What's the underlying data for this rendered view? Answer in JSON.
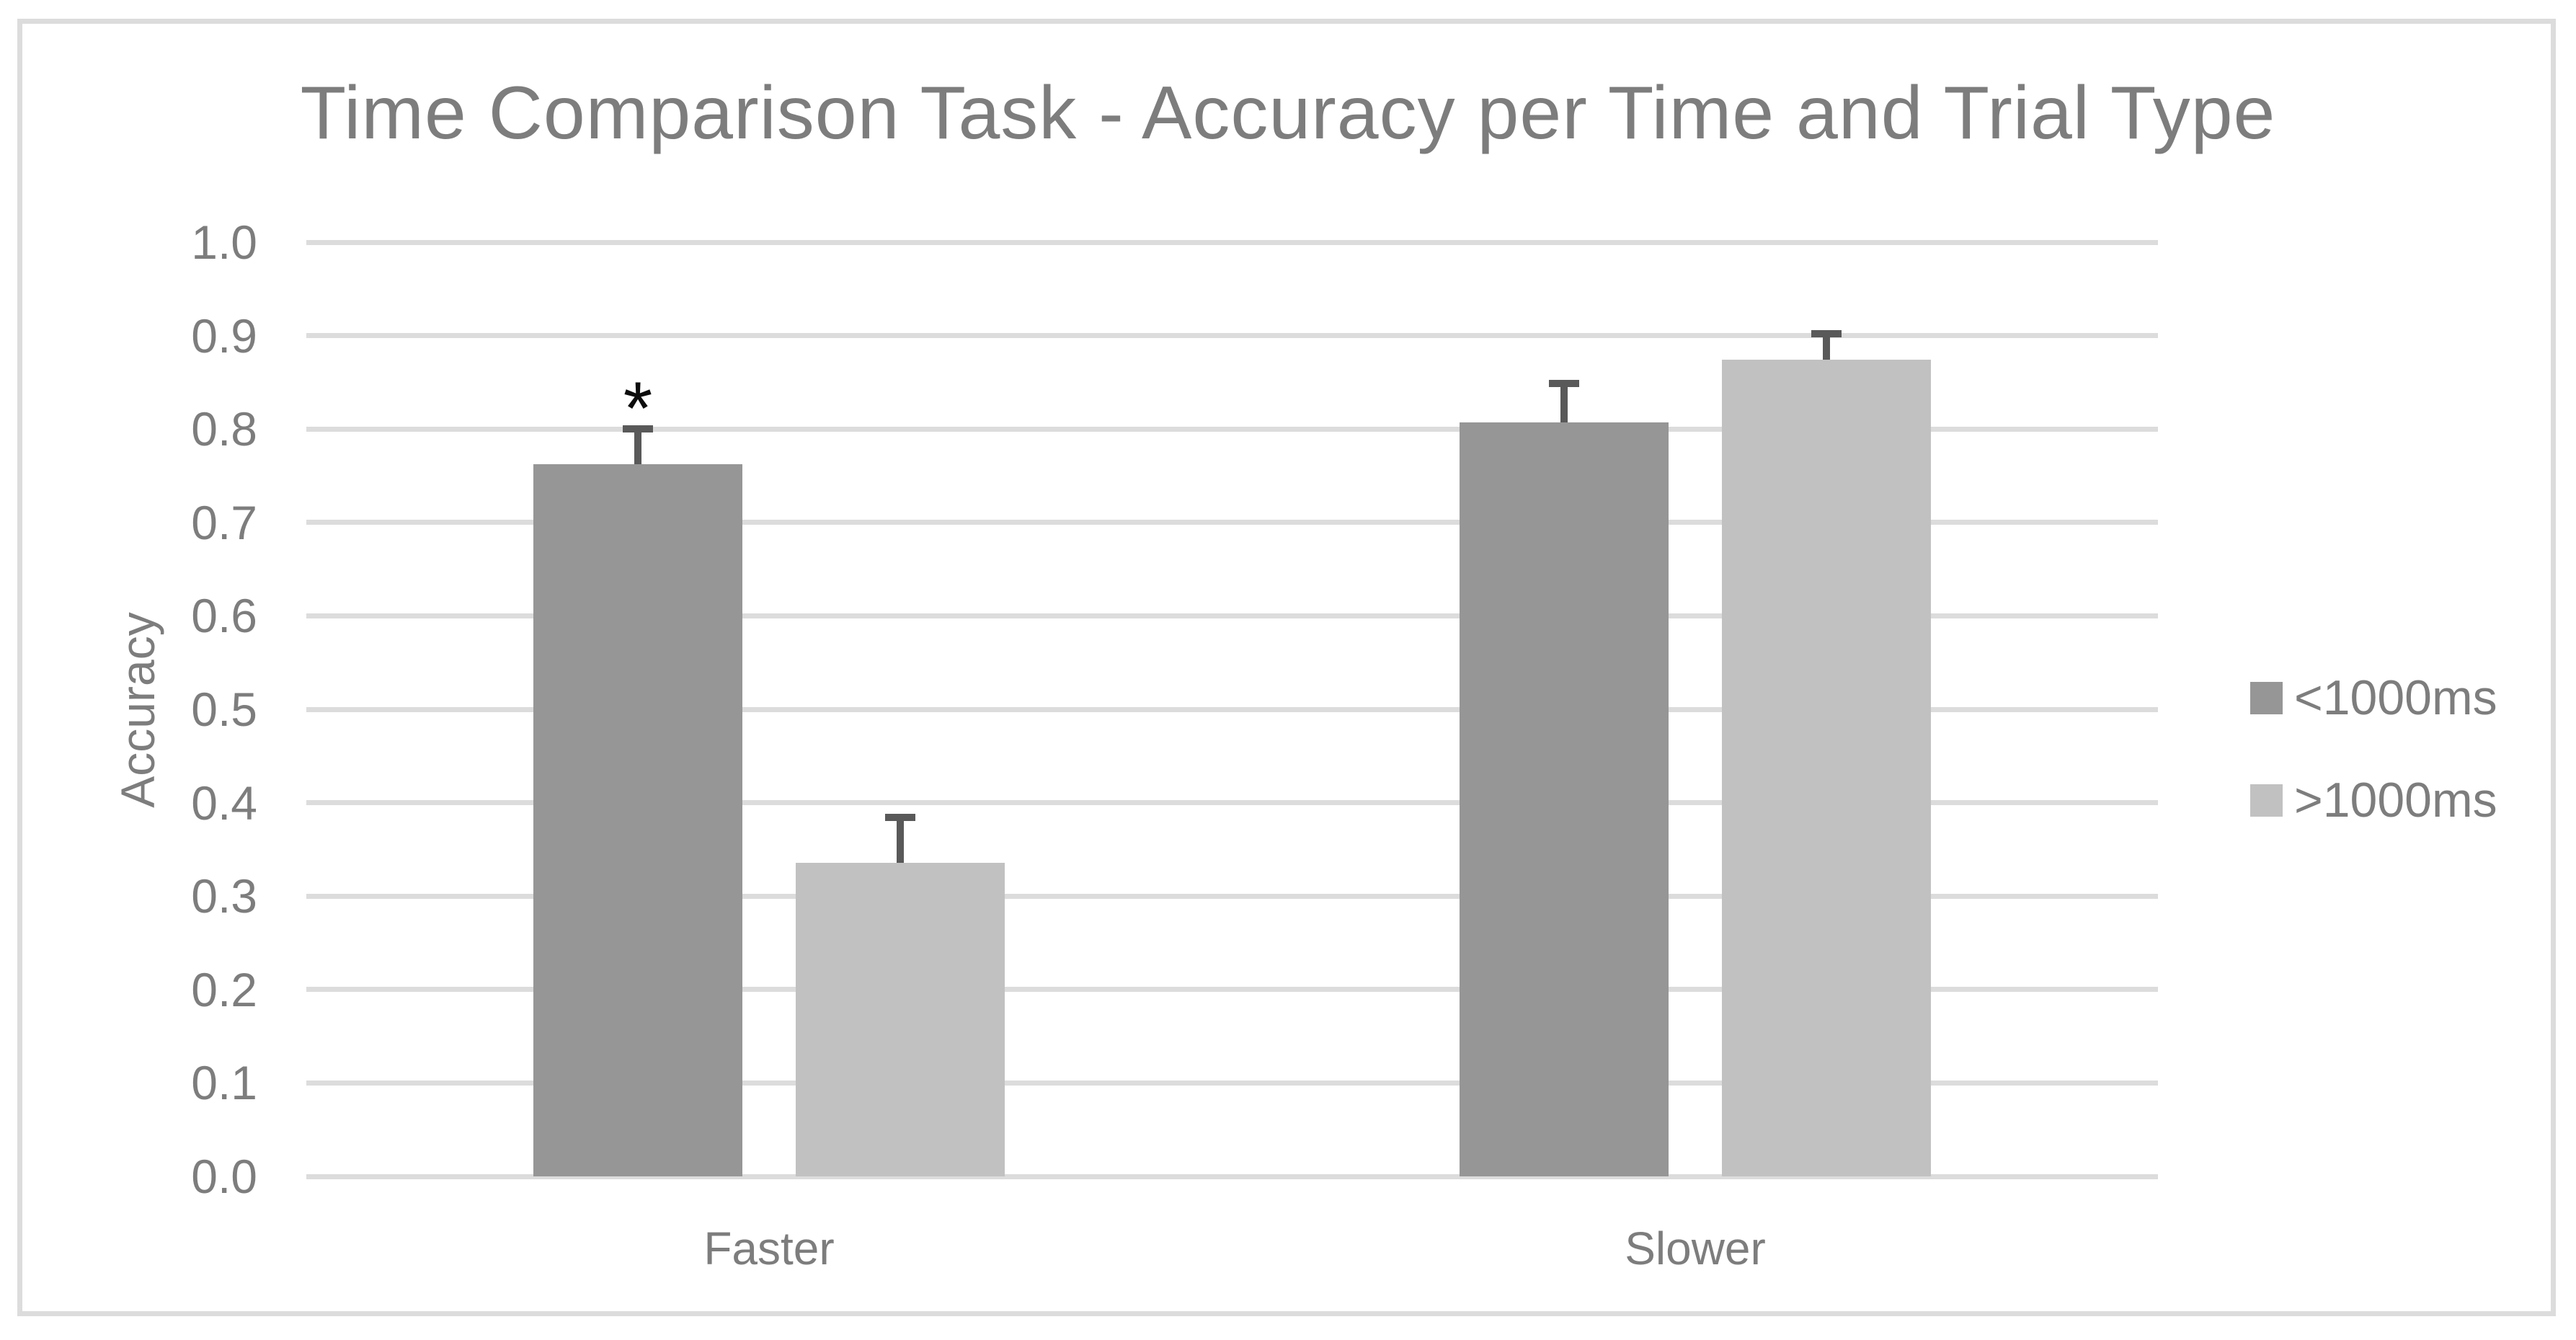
{
  "chart_data": {
    "type": "bar",
    "title": "Time Comparison Task - Accuracy per Time and Trial Type",
    "xlabel": "",
    "ylabel": "Accuracy",
    "categories": [
      "Faster",
      "Slower"
    ],
    "series": [
      {
        "name": "<1000ms",
        "color": "#969696",
        "values": [
          0.762,
          0.807
        ],
        "errors": [
          0.038,
          0.042
        ]
      },
      {
        "name": ">1000ms",
        "color": "#c1c1c1",
        "values": [
          0.336,
          0.874
        ],
        "errors": [
          0.048,
          0.028
        ]
      }
    ],
    "ylim": [
      0.0,
      1.0
    ],
    "ytick_labels": [
      "0.0",
      "0.1",
      "0.2",
      "0.3",
      "0.4",
      "0.5",
      "0.6",
      "0.7",
      "0.8",
      "0.9",
      "1.0"
    ],
    "grid": true,
    "gridline_color": "#dcdcdc",
    "error_bar_color": "#595959",
    "text_color": "#7d7d7d",
    "annotation_color": "#0d0d0d",
    "legend_position": "right",
    "annotations": [
      {
        "text": "*",
        "category": "Faster",
        "series": "<1000ms"
      }
    ]
  }
}
